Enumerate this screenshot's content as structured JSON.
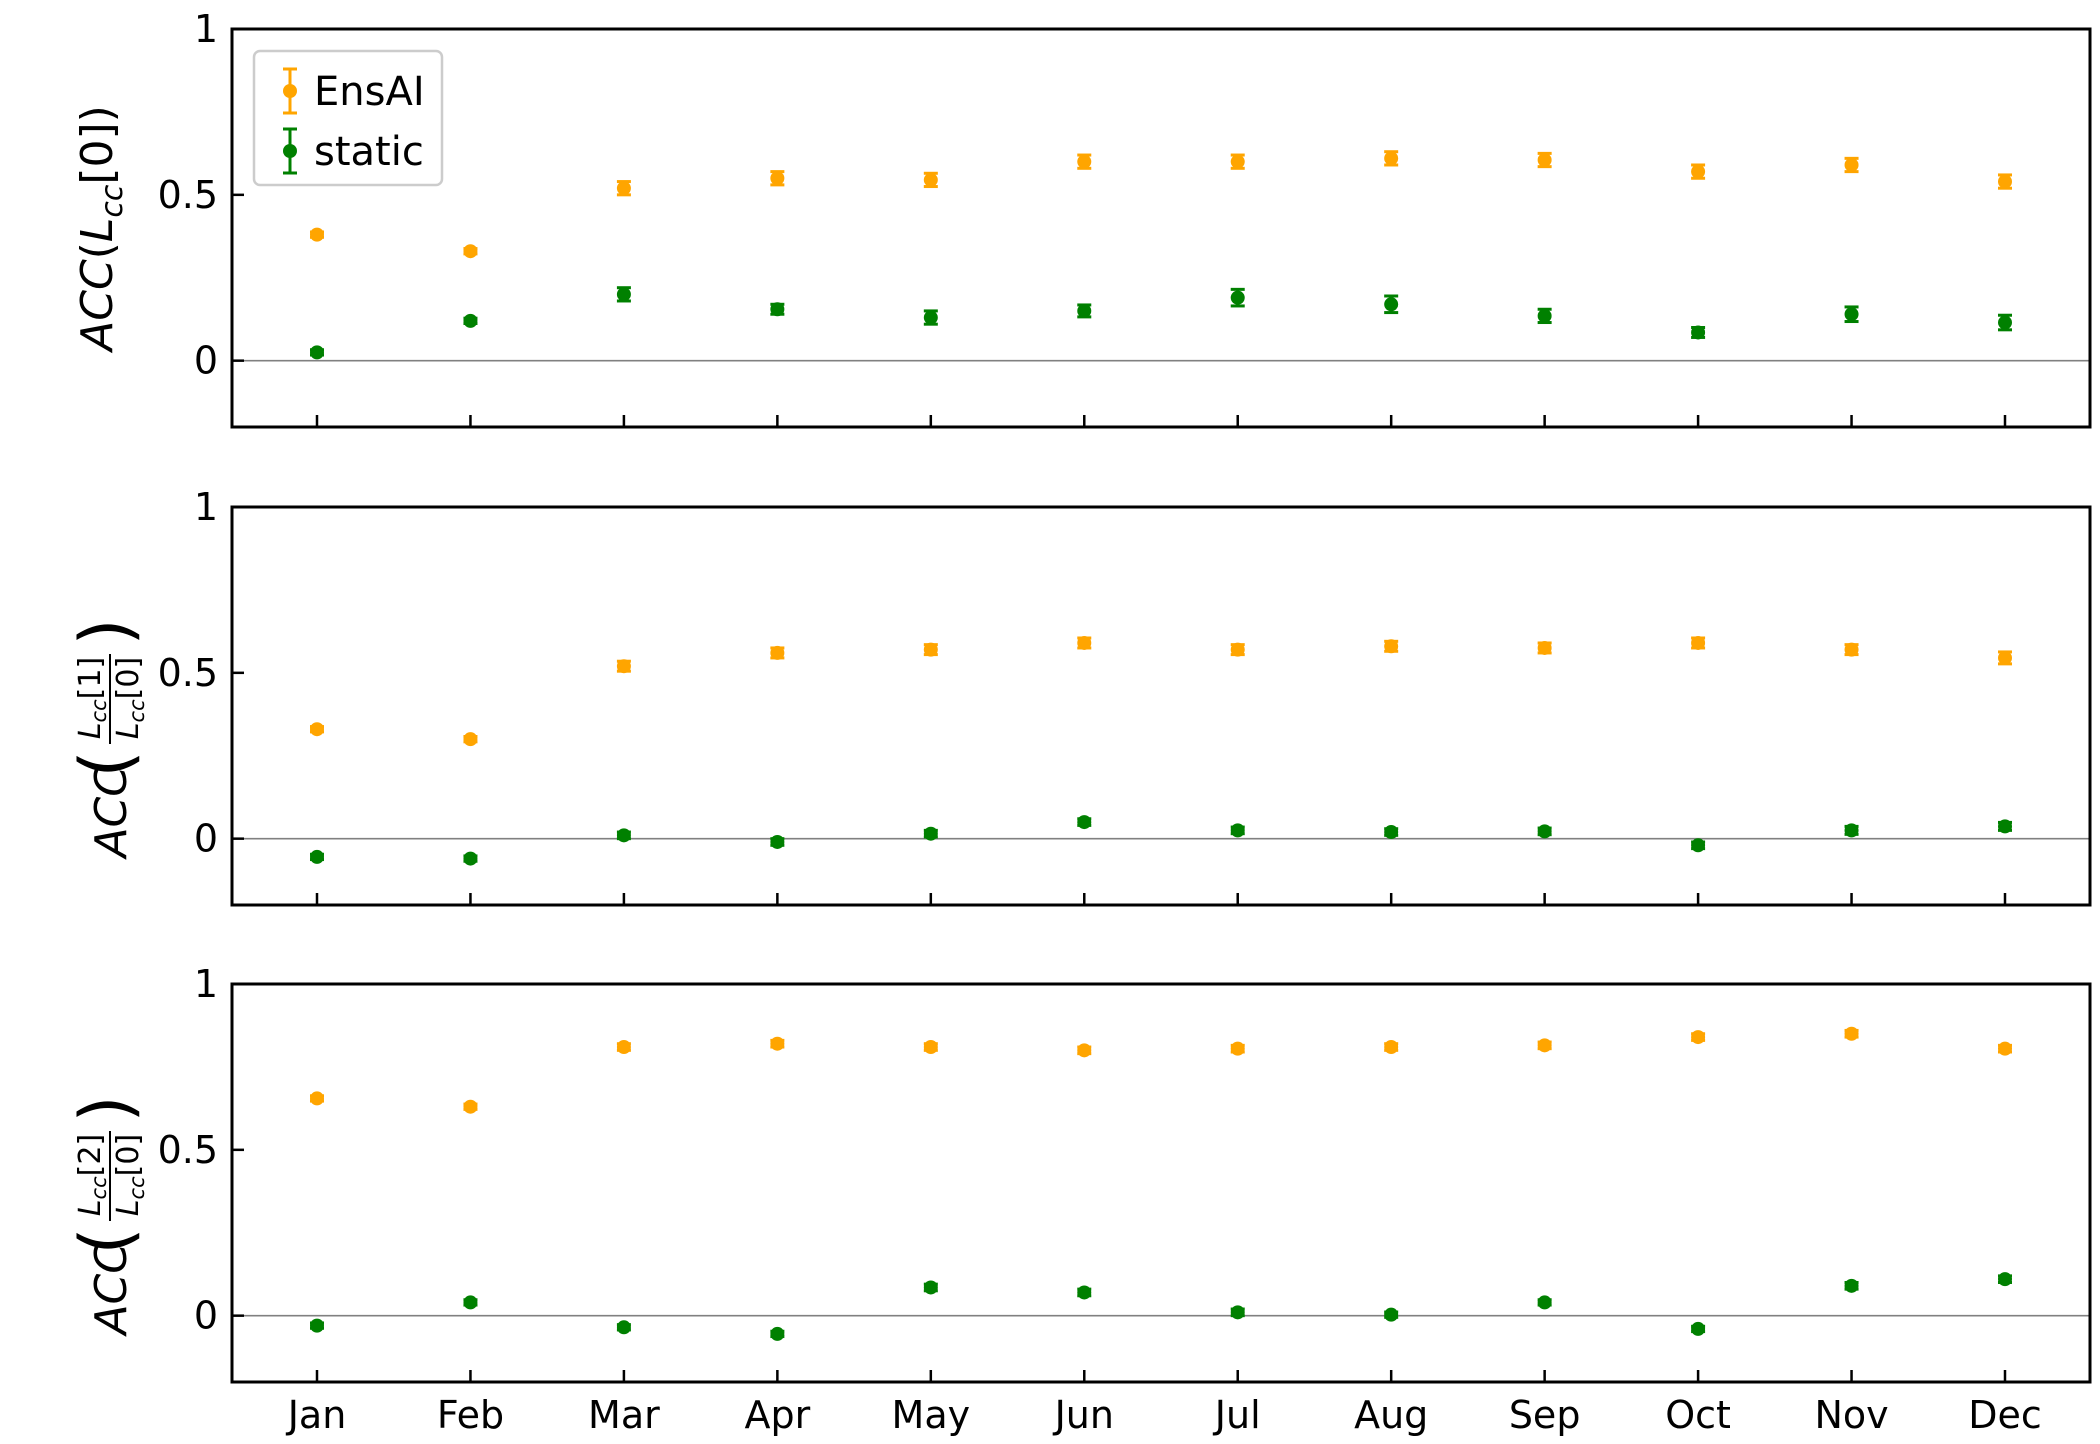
{
  "chart_data": [
    {
      "type": "scatter",
      "panel": "top",
      "ylabel": {
        "prefix": "ACC(",
        "main": "L",
        "sub": "cc",
        "suffix": "[0])"
      },
      "categories": [
        "Jan",
        "Feb",
        "Mar",
        "Apr",
        "May",
        "Jun",
        "Jul",
        "Aug",
        "Sep",
        "Oct",
        "Nov",
        "Dec"
      ],
      "ylim": [
        -0.2,
        1.0
      ],
      "yticks": [
        "0",
        "0.5",
        "1"
      ],
      "series": [
        {
          "name": "EnsAI",
          "color": "#FFA500",
          "values": [
            0.38,
            0.33,
            0.52,
            0.55,
            0.545,
            0.6,
            0.6,
            0.61,
            0.605,
            0.57,
            0.59,
            0.54
          ],
          "errors": [
            0.008,
            0.008,
            0.02,
            0.02,
            0.02,
            0.02,
            0.02,
            0.02,
            0.02,
            0.02,
            0.02,
            0.02
          ]
        },
        {
          "name": "static",
          "color": "#008000",
          "values": [
            0.025,
            0.12,
            0.2,
            0.155,
            0.13,
            0.15,
            0.19,
            0.17,
            0.135,
            0.085,
            0.14,
            0.115
          ],
          "errors": [
            0.008,
            0.008,
            0.02,
            0.015,
            0.02,
            0.018,
            0.025,
            0.025,
            0.02,
            0.015,
            0.022,
            0.022
          ]
        }
      ],
      "legend": {
        "placement": "upper-left",
        "entries": [
          "EnsAI",
          "static"
        ]
      }
    },
    {
      "type": "scatter",
      "panel": "middle",
      "ylabel": {
        "prefix": "ACC(",
        "num_main": "L",
        "num_sub": "cc",
        "num_idx": "[1]",
        "den_main": "L",
        "den_sub": "cc",
        "den_idx": "[0]",
        "suffix": ")"
      },
      "categories": [
        "Jan",
        "Feb",
        "Mar",
        "Apr",
        "May",
        "Jun",
        "Jul",
        "Aug",
        "Sep",
        "Oct",
        "Nov",
        "Dec"
      ],
      "ylim": [
        -0.2,
        1.0
      ],
      "yticks": [
        "0",
        "0.5",
        "1"
      ],
      "series": [
        {
          "name": "EnsAI",
          "color": "#FFA500",
          "values": [
            0.33,
            0.3,
            0.52,
            0.56,
            0.57,
            0.59,
            0.57,
            0.58,
            0.575,
            0.59,
            0.57,
            0.545
          ],
          "errors": [
            0.008,
            0.008,
            0.015,
            0.015,
            0.015,
            0.015,
            0.015,
            0.015,
            0.015,
            0.015,
            0.015,
            0.018
          ]
        },
        {
          "name": "static",
          "color": "#008000",
          "values": [
            -0.055,
            -0.06,
            0.01,
            -0.01,
            0.015,
            0.05,
            0.025,
            0.02,
            0.022,
            -0.02,
            0.025,
            0.037
          ],
          "errors": [
            0.008,
            0.008,
            0.01,
            0.01,
            0.01,
            0.01,
            0.01,
            0.01,
            0.01,
            0.01,
            0.012,
            0.012
          ]
        }
      ]
    },
    {
      "type": "scatter",
      "panel": "bottom",
      "ylabel": {
        "prefix": "ACC(",
        "num_main": "L",
        "num_sub": "cc",
        "num_idx": "[2]",
        "den_main": "L",
        "den_sub": "cc",
        "den_idx": "[0]",
        "suffix": ")"
      },
      "categories": [
        "Jan",
        "Feb",
        "Mar",
        "Apr",
        "May",
        "Jun",
        "Jul",
        "Aug",
        "Sep",
        "Oct",
        "Nov",
        "Dec"
      ],
      "ylim": [
        -0.2,
        1.0
      ],
      "yticks": [
        "0",
        "0.5",
        "1"
      ],
      "series": [
        {
          "name": "EnsAI",
          "color": "#FFA500",
          "values": [
            0.655,
            0.63,
            0.81,
            0.82,
            0.81,
            0.8,
            0.805,
            0.81,
            0.815,
            0.84,
            0.85,
            0.805
          ],
          "errors": [
            0.008,
            0.008,
            0.01,
            0.01,
            0.01,
            0.01,
            0.01,
            0.01,
            0.01,
            0.01,
            0.01,
            0.01
          ]
        },
        {
          "name": "static",
          "color": "#008000",
          "values": [
            -0.03,
            0.04,
            -0.035,
            -0.055,
            0.085,
            0.07,
            0.01,
            0.003,
            0.04,
            -0.04,
            0.09,
            0.11
          ],
          "errors": [
            0.008,
            0.008,
            0.008,
            0.008,
            0.01,
            0.01,
            0.01,
            0.008,
            0.008,
            0.008,
            0.01,
            0.01
          ]
        }
      ]
    }
  ]
}
